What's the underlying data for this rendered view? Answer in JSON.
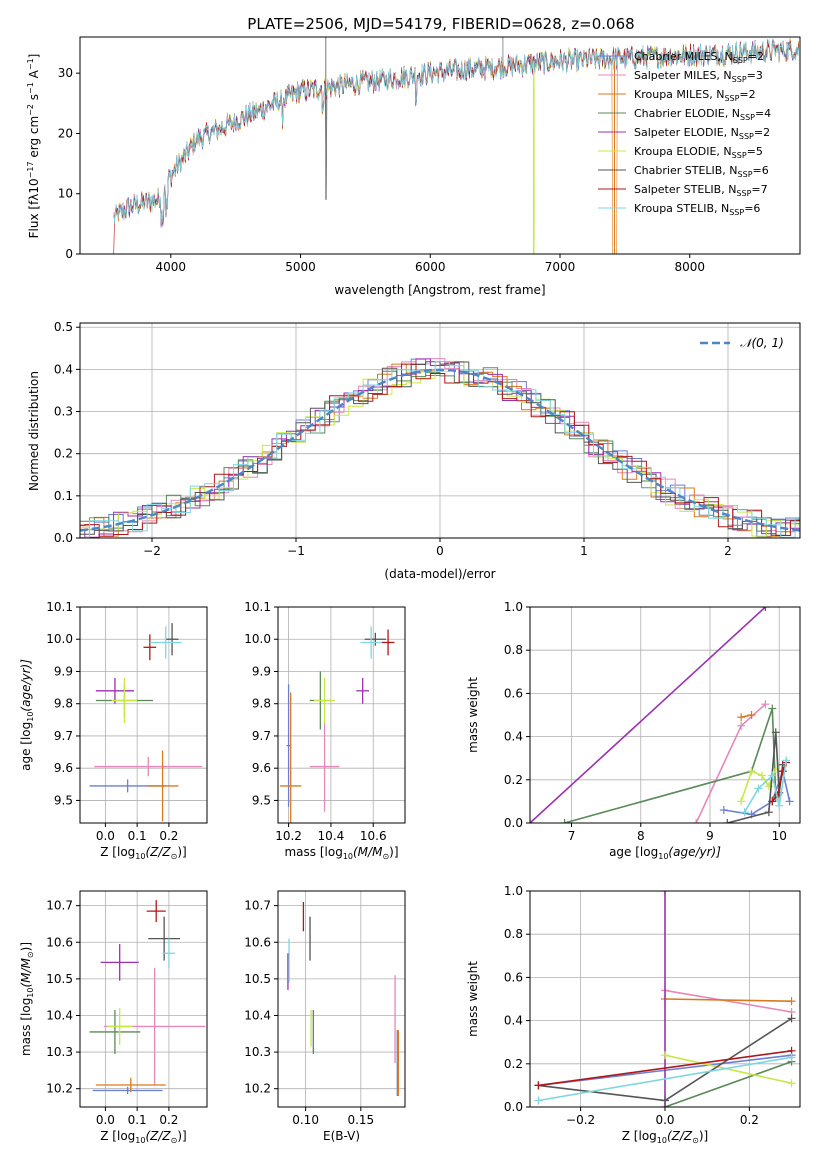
{
  "figure": {
    "title": "PLATE=2506, MJD=54179, FIBERID=0628, z=0.068"
  },
  "series_colors": [
    "#6b7fd7",
    "#e887b9",
    "#d97a1e",
    "#5a8a5a",
    "#9b30b0",
    "#c8e84a",
    "#555555",
    "#b01818",
    "#7ed6e0"
  ],
  "chart_data": [
    {
      "type": "line",
      "panel": "spectrum",
      "xlabel": "wavelength [Angstrom, rest frame]",
      "ylabel": "Flux [f_λ 10^-17 erg cm^-2 s^-1 A^-1]",
      "xlim": [
        3300,
        8850
      ],
      "ylim": [
        0,
        36
      ],
      "xticks": [
        4000,
        5000,
        6000,
        7000,
        8000
      ],
      "yticks": [
        0,
        10,
        20,
        30
      ],
      "grid": false,
      "legend_position": "top-right",
      "series": [
        {
          "label": "Chabrier MILES",
          "nssp": "2"
        },
        {
          "label": "Salpeter MILES",
          "nssp": "3"
        },
        {
          "label": "Kroupa MILES",
          "nssp": "2"
        },
        {
          "label": "Chabrier ELODIE",
          "nssp": "4"
        },
        {
          "label": "Salpeter ELODIE",
          "nssp": "2"
        },
        {
          "label": "Kroupa ELODIE",
          "nssp": "5"
        },
        {
          "label": "Chabrier STELIB",
          "nssp": "6"
        },
        {
          "label": "Salpeter STELIB",
          "nssp": "7"
        },
        {
          "label": "Kroupa STELIB",
          "nssp": "6"
        }
      ],
      "continuum": {
        "x": [
          3550,
          3700,
          3900,
          4000,
          4200,
          4500,
          4800,
          5000,
          5500,
          6000,
          6500,
          7000,
          7500,
          8000,
          8500,
          8850
        ],
        "y": [
          6,
          8,
          9,
          13,
          19,
          22,
          25,
          27,
          28.5,
          30,
          31,
          32,
          32.5,
          33,
          33.5,
          34
        ]
      }
    },
    {
      "type": "line",
      "panel": "histogram",
      "xlabel": "(data-model)/error",
      "ylabel": "Normed distribution",
      "xlim": [
        -2.5,
        2.5
      ],
      "ylim": [
        0,
        0.51
      ],
      "xticks": [
        -2,
        -1,
        0,
        1,
        2
      ],
      "yticks": [
        0.0,
        0.1,
        0.2,
        0.3,
        0.4,
        0.5
      ],
      "grid": true,
      "legend": "N(0,1)",
      "legend_position": "top-right",
      "gaussian": {
        "mean": 0,
        "sigma": 1
      }
    },
    {
      "type": "scatter",
      "panel": "age-vs-Z",
      "xlabel": "Z [log10(Z/Z⊙)]",
      "ylabel": "age [log10(age/yr)]",
      "xlim": [
        -0.08,
        0.32
      ],
      "ylim": [
        9.43,
        10.1
      ],
      "xticks": [
        0.0,
        0.1,
        0.2
      ],
      "yticks": [
        9.5,
        9.6,
        9.7,
        9.8,
        9.9,
        10.0,
        10.1
      ],
      "points": [
        {
          "x": 0.07,
          "y": 9.545,
          "xerr": 0.12,
          "yerr": 0.02
        },
        {
          "x": 0.135,
          "y": 9.605,
          "xerr": 0.17,
          "yerr": 0.03
        },
        {
          "x": 0.18,
          "y": 9.545,
          "xerr": 0.05,
          "yerr": 0.11
        },
        {
          "x": 0.06,
          "y": 9.81,
          "xerr": 0.09,
          "yerr": 0.05
        },
        {
          "x": 0.03,
          "y": 9.84,
          "xerr": 0.06,
          "yerr": 0.04
        },
        {
          "x": 0.06,
          "y": 9.81,
          "xerr": 0.04,
          "yerr": 0.07
        },
        {
          "x": 0.21,
          "y": 10.0,
          "xerr": 0.02,
          "yerr": 0.05
        },
        {
          "x": 0.14,
          "y": 9.975,
          "xerr": 0.02,
          "yerr": 0.04
        },
        {
          "x": 0.19,
          "y": 9.99,
          "xerr": 0.05,
          "yerr": 0.05
        }
      ]
    },
    {
      "type": "scatter",
      "panel": "age-vs-mass",
      "xlabel": "mass [log10(M/M⊙)]",
      "ylabel": "",
      "xlim": [
        10.15,
        10.75
      ],
      "ylim": [
        9.43,
        10.1
      ],
      "xticks": [
        10.2,
        10.4,
        10.6
      ],
      "yticks": [
        9.5,
        9.6,
        9.7,
        9.8,
        9.9,
        10.0,
        10.1
      ],
      "points": [
        {
          "x": 10.2,
          "y": 9.67,
          "xerr": 0.01,
          "yerr": 0.19
        },
        {
          "x": 10.37,
          "y": 9.605,
          "xerr": 0.07,
          "yerr": 0.14
        },
        {
          "x": 10.21,
          "y": 9.545,
          "xerr": 0.05,
          "yerr": 0.29
        },
        {
          "x": 10.35,
          "y": 9.81,
          "xerr": 0.05,
          "yerr": 0.09
        },
        {
          "x": 10.55,
          "y": 9.84,
          "xerr": 0.03,
          "yerr": 0.04
        },
        {
          "x": 10.37,
          "y": 9.81,
          "xerr": 0.05,
          "yerr": 0.07
        },
        {
          "x": 10.61,
          "y": 10.0,
          "xerr": 0.05,
          "yerr": 0.02
        },
        {
          "x": 10.67,
          "y": 9.99,
          "xerr": 0.03,
          "yerr": 0.04
        },
        {
          "x": 10.59,
          "y": 9.99,
          "xerr": 0.05,
          "yerr": 0.05
        }
      ]
    },
    {
      "type": "line",
      "panel": "mass-weight-vs-age",
      "xlabel": "age [log10(age/yr)]",
      "ylabel": "mass weight",
      "xlim": [
        6.4,
        10.3
      ],
      "ylim": [
        0.0,
        1.0
      ],
      "xticks": [
        7,
        8,
        9,
        10
      ],
      "yticks": [
        0.0,
        0.2,
        0.4,
        0.6,
        0.8,
        1.0
      ],
      "grid": true,
      "series_points": [
        {
          "x": [
            9.2,
            9.6,
            9.9,
            10.05,
            10.15
          ],
          "y": [
            0.06,
            0.04,
            0.1,
            0.24,
            0.1
          ]
        },
        {
          "x": [
            8.8,
            9.45,
            9.8
          ],
          "y": [
            0.0,
            0.45,
            0.55
          ]
        },
        {
          "x": [
            9.45,
            9.6
          ],
          "y": [
            0.49,
            0.5
          ]
        },
        {
          "x": [
            6.9,
            9.6,
            9.9,
            9.95
          ],
          "y": [
            0.0,
            0.24,
            0.53,
            0.12
          ]
        },
        {
          "x": [
            6.4,
            9.8
          ],
          "y": [
            0.0,
            1.0
          ]
        },
        {
          "x": [
            9.45,
            9.6,
            9.75,
            9.85,
            9.95
          ],
          "y": [
            0.1,
            0.24,
            0.22,
            0.17,
            0.25
          ]
        },
        {
          "x": [
            9.25,
            9.85,
            9.95,
            10.0,
            10.05
          ],
          "y": [
            0.0,
            0.05,
            0.42,
            0.14,
            0.27
          ]
        },
        {
          "x": [
            9.9,
            9.98,
            10.05,
            10.1
          ],
          "y": [
            0.1,
            0.13,
            0.24,
            0.28
          ]
        },
        {
          "x": [
            9.5,
            9.7,
            9.9,
            10.0,
            10.1
          ],
          "y": [
            0.05,
            0.16,
            0.22,
            0.08,
            0.29
          ]
        }
      ]
    },
    {
      "type": "scatter",
      "panel": "mass-vs-Z",
      "xlabel": "Z [log10(Z/Z⊙)]",
      "ylabel": "mass [log10(M/M⊙)]",
      "xlim": [
        -0.08,
        0.32
      ],
      "ylim": [
        10.15,
        10.74
      ],
      "xticks": [
        0.0,
        0.1,
        0.2
      ],
      "yticks": [
        10.2,
        10.3,
        10.4,
        10.5,
        10.6,
        10.7
      ],
      "points": [
        {
          "x": 0.07,
          "y": 10.195,
          "xerr": 0.11,
          "yerr": 0.01
        },
        {
          "x": 0.155,
          "y": 10.37,
          "xerr": 0.16,
          "yerr": 0.16
        },
        {
          "x": 0.08,
          "y": 10.21,
          "xerr": 0.11,
          "yerr": 0.02
        },
        {
          "x": 0.03,
          "y": 10.355,
          "xerr": 0.08,
          "yerr": 0.06
        },
        {
          "x": 0.045,
          "y": 10.545,
          "xerr": 0.06,
          "yerr": 0.05
        },
        {
          "x": 0.045,
          "y": 10.37,
          "xerr": 0.04,
          "yerr": 0.05
        },
        {
          "x": 0.185,
          "y": 10.61,
          "xerr": 0.05,
          "yerr": 0.06
        },
        {
          "x": 0.16,
          "y": 10.685,
          "xerr": 0.03,
          "yerr": 0.03
        },
        {
          "x": 0.2,
          "y": 10.57,
          "xerr": 0.02,
          "yerr": 0.04
        }
      ]
    },
    {
      "type": "scatter",
      "panel": "mass-vs-ebv",
      "xlabel": "E(B-V)",
      "ylabel": "",
      "xlim": [
        0.075,
        0.19
      ],
      "ylim": [
        10.15,
        10.74
      ],
      "xticks": [
        0.1,
        0.15
      ],
      "yticks": [
        10.2,
        10.3,
        10.4,
        10.5,
        10.6,
        10.7
      ],
      "points": [
        {
          "x": 0.183,
          "y": 10.27,
          "xerr": 0.0,
          "yerr": 0.09
        },
        {
          "x": 0.181,
          "y": 10.39,
          "xerr": 0.0,
          "yerr": 0.12
        },
        {
          "x": 0.184,
          "y": 10.27,
          "xerr": 0.0,
          "yerr": 0.09
        },
        {
          "x": 0.107,
          "y": 10.355,
          "xerr": 0.0,
          "yerr": 0.06
        },
        {
          "x": 0.084,
          "y": 10.52,
          "xerr": 0.0,
          "yerr": 0.05
        },
        {
          "x": 0.105,
          "y": 10.365,
          "xerr": 0.0,
          "yerr": 0.05
        },
        {
          "x": 0.104,
          "y": 10.61,
          "xerr": 0.0,
          "yerr": 0.06
        },
        {
          "x": 0.098,
          "y": 10.67,
          "xerr": 0.0,
          "yerr": 0.04
        },
        {
          "x": 0.085,
          "y": 10.55,
          "xerr": 0.0,
          "yerr": 0.06
        }
      ]
    },
    {
      "type": "line",
      "panel": "mass-weight-vs-Z",
      "xlabel": "Z [log10(Z/Z⊙)]",
      "ylabel": "mass weight",
      "xlim": [
        -0.32,
        0.32
      ],
      "ylim": [
        0.0,
        1.0
      ],
      "xticks": [
        -0.2,
        0.0,
        0.2
      ],
      "yticks": [
        0.0,
        0.2,
        0.4,
        0.6,
        0.8,
        1.0
      ],
      "grid": true,
      "series_points": [
        {
          "x": [
            -0.3,
            0.3
          ],
          "y": [
            0.1,
            0.24
          ]
        },
        {
          "x": [
            0.0,
            0.3
          ],
          "y": [
            0.54,
            0.44
          ]
        },
        {
          "x": [
            0.0,
            0.3
          ],
          "y": [
            0.5,
            0.49
          ]
        },
        {
          "x": [
            0.0,
            0.3
          ],
          "y": [
            0.0,
            0.21
          ]
        },
        {
          "x": [
            0.0,
            0.0
          ],
          "y": [
            0.0,
            1.0
          ]
        },
        {
          "x": [
            0.0,
            0.3
          ],
          "y": [
            0.24,
            0.11
          ]
        },
        {
          "x": [
            -0.3,
            0.0,
            0.3
          ],
          "y": [
            0.1,
            0.03,
            0.41
          ]
        },
        {
          "x": [
            -0.3,
            0.3
          ],
          "y": [
            0.1,
            0.26
          ]
        },
        {
          "x": [
            -0.3,
            0.3
          ],
          "y": [
            0.03,
            0.23
          ]
        }
      ]
    }
  ],
  "axis_labels": {
    "spectrum_x": "wavelength [Angstrom, rest frame]",
    "spectrum_y": "Flux [fλ10",
    "spectrum_y_exp1": "−17",
    "spectrum_y_mid": " erg cm",
    "spectrum_y_exp2": "−2",
    "spectrum_y_mid2": " s",
    "spectrum_y_exp3": "−1",
    "spectrum_y_end": " A",
    "spectrum_y_exp4": "−1",
    "spectrum_y_close": "]",
    "hist_x": "(data-model)/error",
    "hist_y": "Normed distribution",
    "hist_legend": "𝒩(0, 1)",
    "age_y": "age  [log",
    "age_y_sub": "10",
    "age_y_arg": "(age/yr)]",
    "z_x": "Z [log",
    "z_x_sub": "10",
    "z_x_arg": "(Z/Z",
    "z_x_sun": "⊙",
    "z_x_close": ")]",
    "mass_x": "mass [log",
    "mass_x_sub": "10",
    "mass_x_arg": "(M/M",
    "mass_x_sun": "⊙",
    "mass_x_close": ")]",
    "mw_y": "mass weight",
    "age_x": "age  [log",
    "age_x_sub": "10",
    "age_x_arg": "(age/yr)]",
    "ebv_x": "E(B-V)",
    "mass_y": "mass [log",
    "mass_y_sub": "10",
    "mass_y_arg": "(M/M",
    "mass_y_sun": "⊙",
    "mass_y_close": ")]",
    "nssp_prefix": ", N",
    "nssp_sub": "SSP",
    "nssp_eq": "="
  },
  "tick_labels": {
    "spec_x": [
      "4000",
      "5000",
      "6000",
      "7000",
      "8000"
    ],
    "spec_y": [
      "0",
      "10",
      "20",
      "30"
    ],
    "hist_x": [
      "−2",
      "−1",
      "0",
      "1",
      "2"
    ],
    "hist_y": [
      "0.0",
      "0.1",
      "0.2",
      "0.3",
      "0.4",
      "0.5"
    ],
    "age_y": [
      "9.5",
      "9.6",
      "9.7",
      "9.8",
      "9.9",
      "10.0",
      "10.1"
    ],
    "z_x": [
      "0.0",
      "0.1",
      "0.2"
    ],
    "mass_x": [
      "10.2",
      "10.4",
      "10.6"
    ],
    "mw_y": [
      "0.0",
      "0.2",
      "0.4",
      "0.6",
      "0.8",
      "1.0"
    ],
    "age_x": [
      "7",
      "8",
      "9",
      "10"
    ],
    "mass_y": [
      "10.2",
      "10.3",
      "10.4",
      "10.5",
      "10.6",
      "10.7"
    ],
    "ebv_x": [
      "0.10",
      "0.15"
    ],
    "zz_x": [
      "−0.2",
      "0.0",
      "0.2"
    ]
  }
}
